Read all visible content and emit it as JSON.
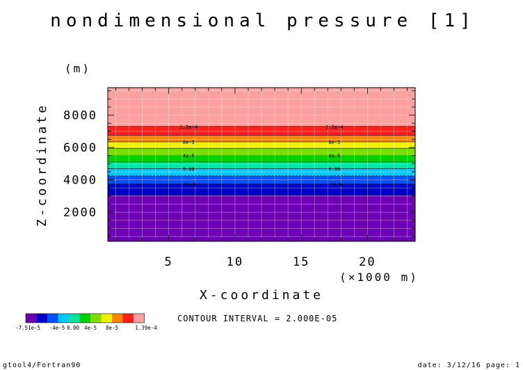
{
  "chart_data": {
    "type": "heatmap",
    "title": "nondimensional pressure [1]",
    "xlabel": "X-coordinate",
    "x_unit": "(×1000 m)",
    "ylabel": "Z-coordinate",
    "y_unit": "(m)",
    "xlim": [
      0.4,
      23.6
    ],
    "ylim": [
      200,
      9700
    ],
    "x_ticks": [
      5,
      10,
      15,
      20
    ],
    "y_ticks": [
      2000,
      4000,
      6000,
      8000
    ],
    "x_tick_labels": [
      "5",
      "10",
      "15",
      "20"
    ],
    "y_tick_labels": [
      "2000",
      "4000",
      "6000",
      "8000"
    ],
    "grid": true,
    "bands": [
      {
        "z0": 200,
        "z1": 3050,
        "color": "#6e00b4"
      },
      {
        "z0": 3050,
        "z1": 3750,
        "color": "#0000c8"
      },
      {
        "z0": 3750,
        "z1": 4250,
        "color": "#0050ff"
      },
      {
        "z0": 4250,
        "z1": 4700,
        "color": "#00c8ff"
      },
      {
        "z0": 4700,
        "z1": 5100,
        "color": "#00e6a0"
      },
      {
        "z0": 5100,
        "z1": 5500,
        "color": "#00d200"
      },
      {
        "z0": 5500,
        "z1": 5950,
        "color": "#7ddc00"
      },
      {
        "z0": 5950,
        "z1": 6350,
        "color": "#f0f000"
      },
      {
        "z0": 6350,
        "z1": 6750,
        "color": "#ff8200"
      },
      {
        "z0": 6750,
        "z1": 7300,
        "color": "#ff1e1e"
      },
      {
        "z0": 7300,
        "z1": 9700,
        "color": "#ffa0a0"
      }
    ],
    "contour_labels": [
      {
        "text": "1.2e-4",
        "z": 7300
      },
      {
        "text": "8e-5",
        "z": 6350
      },
      {
        "text": "4e-5",
        "z": 5500
      },
      {
        "text": "0.00",
        "z": 4700
      },
      {
        "text": "-4e-5",
        "z": 3750
      }
    ],
    "contour_label_x": [
      6.5,
      17.5
    ],
    "contour_interval_text": "CONTOUR INTERVAL = 2.000E-05",
    "colorbar": {
      "colors": [
        "#6e00b4",
        "#0000c8",
        "#0050ff",
        "#00c8ff",
        "#00e6a0",
        "#00d200",
        "#7ddc00",
        "#f0f000",
        "#ff8200",
        "#ff1e1e",
        "#ffa0a0"
      ],
      "labels": [
        "-7.51e-5",
        "-4e-5",
        "0.00",
        "4e-5",
        "8e-5",
        "1.39e-4"
      ]
    }
  },
  "footer": {
    "left": "gtool4/Fortran90",
    "right": "date: 3/12/16 page: 1"
  }
}
